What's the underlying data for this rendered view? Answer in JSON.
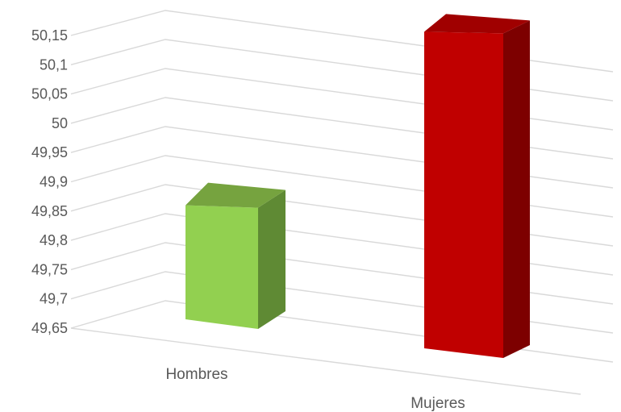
{
  "chart_data": {
    "type": "bar",
    "categories": [
      "Hombres",
      "Mujeres"
    ],
    "values": [
      49.85,
      50.13
    ],
    "ylim": [
      49.65,
      50.15
    ],
    "yticks": [
      "50,15",
      "50,1",
      "50,05",
      "50",
      "49,95",
      "49,9",
      "49,85",
      "49,8",
      "49,75",
      "49,7",
      "49,65"
    ],
    "grid": true,
    "colors": {
      "bars": [
        "#92d050",
        "#c00000"
      ],
      "bar_tops": [
        "#76a33f",
        "#a00000"
      ],
      "bar_sides": [
        "#5f8a34",
        "#7d0000"
      ],
      "grid": "#d9d9d9",
      "text": "#595959"
    }
  }
}
